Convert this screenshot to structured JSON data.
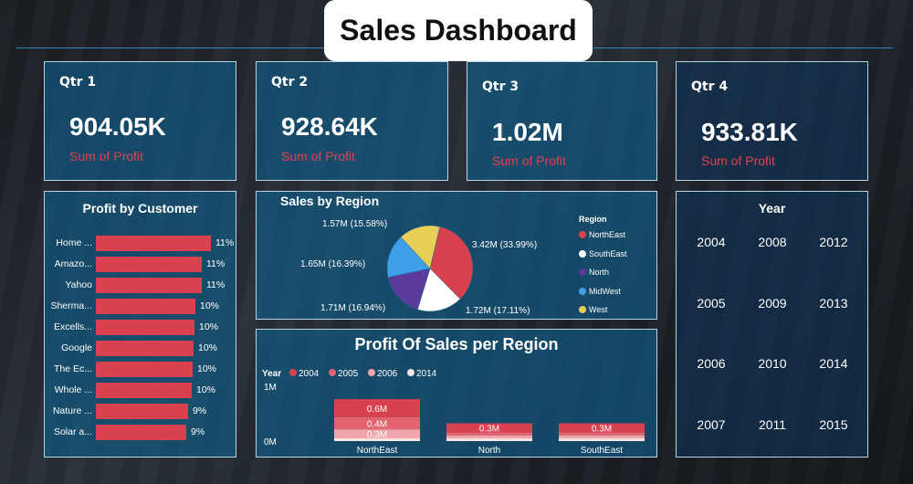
{
  "title": "Sales Dashboard",
  "kpis": [
    {
      "label": "Qtr 1",
      "value": "904.05K",
      "sub": "Sum of Profit"
    },
    {
      "label": "Qtr 2",
      "value": "928.64K",
      "sub": "Sum of Profit"
    },
    {
      "label": "Qtr 3",
      "value": "1.02M",
      "sub": "Sum of Profit"
    },
    {
      "label": "Qtr 4",
      "value": "933.81K",
      "sub": "Sum of Profit"
    }
  ],
  "colors": {
    "bar": "#d9414f",
    "northeast": "#d9414f",
    "southeast": "#ffffff",
    "north": "#5b3a99",
    "midwest": "#3f9fe8",
    "west": "#e8cf58",
    "y2004": "#d9414f",
    "y2005": "#e36470",
    "y2006": "#f0a5ac",
    "y2014": "#fbe2e4"
  },
  "chart_data": [
    {
      "type": "bar",
      "title": "Profit by Customer",
      "categories": [
        "Home ...",
        "Amazo...",
        "Yahoo",
        "Sherma...",
        "Excells...",
        "Google",
        "The Ec...",
        "Whole ...",
        "Nature ...",
        "Solar a..."
      ],
      "values": [
        11,
        11,
        11,
        10,
        10,
        10,
        10,
        10,
        9,
        9
      ],
      "value_labels": [
        "11%",
        "11%",
        "11%",
        "10%",
        "10%",
        "10%",
        "10%",
        "10%",
        "9%",
        "9%"
      ],
      "orientation": "horizontal"
    },
    {
      "type": "pie",
      "title": "Sales by Region",
      "legend_title": "Region",
      "legend_position": "right",
      "slices": [
        {
          "name": "NorthEast",
          "value": 3.42,
          "label": "3.42M (33.99%)",
          "color": "#d9414f"
        },
        {
          "name": "SouthEast",
          "value": 1.72,
          "label": "1.72M (17.11%)",
          "color": "#ffffff"
        },
        {
          "name": "North",
          "value": 1.71,
          "label": "1.71M (16.94%)",
          "color": "#5b3a99"
        },
        {
          "name": "MidWest",
          "value": 1.65,
          "label": "1.65M (16.39%)",
          "color": "#3f9fe8"
        },
        {
          "name": "West",
          "value": 1.57,
          "label": "1.57M (15.58%)",
          "color": "#e8cf58"
        }
      ]
    },
    {
      "type": "bar",
      "title": "Profit Of Sales per Region",
      "legend_title": "Year",
      "legend_position": "top-left",
      "stacked": true,
      "categories": [
        "NorthEast",
        "North",
        "SouthEast"
      ],
      "y_ticks": [
        "1M",
        "0M"
      ],
      "series": [
        {
          "name": "2004",
          "color": "#d9414f",
          "values": [
            0.6,
            0.3,
            0.3
          ],
          "labels": [
            "0.6M",
            "0.3M",
            "0.3M"
          ]
        },
        {
          "name": "2005",
          "color": "#e36470",
          "values": [
            0.4,
            0.1,
            0.1
          ],
          "labels": [
            "0.4M",
            "",
            ""
          ]
        },
        {
          "name": "2006",
          "color": "#f0a5ac",
          "values": [
            0.3,
            0.1,
            0.1
          ],
          "labels": [
            "0.3M",
            "",
            ""
          ]
        },
        {
          "name": "2014",
          "color": "#fbe2e4",
          "values": [
            0.05,
            0.05,
            0.05
          ],
          "labels": [
            "",
            "",
            ""
          ]
        }
      ]
    }
  ],
  "year_slicer": {
    "title": "Year",
    "years": [
      "2004",
      "2008",
      "2012",
      "2005",
      "2009",
      "2013",
      "2006",
      "2010",
      "2014",
      "2007",
      "2011",
      "2015"
    ]
  }
}
